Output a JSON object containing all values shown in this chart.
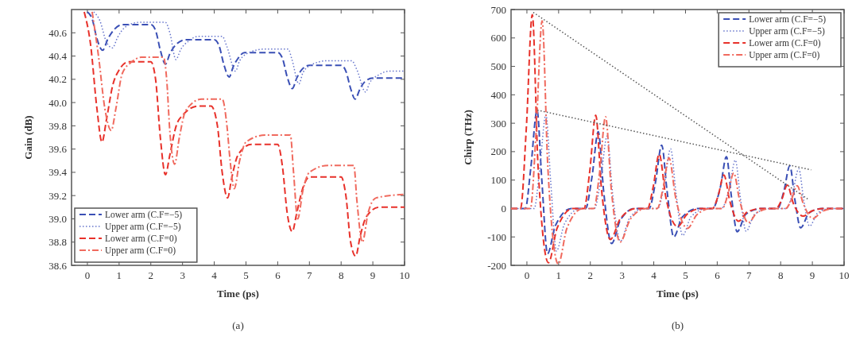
{
  "chart_data": [
    {
      "type": "line",
      "xlabel": "Time (ps)",
      "ylabel": "Gain (dB)",
      "annotations": [
        "(a)"
      ],
      "legend": "bottom left",
      "xlim": [
        -0.5,
        10
      ],
      "xticks": [
        0,
        1,
        2,
        3,
        4,
        5,
        6,
        7,
        8,
        9,
        10
      ],
      "ylim": [
        38.6,
        40.8
      ],
      "yticks": [
        38.6,
        38.8,
        {
          "value": 39,
          "label": "39.0"
        },
        39.2,
        39.4,
        39.6,
        39.8,
        {
          "value": 40,
          "label": "40.0"
        },
        40.2,
        40.4,
        40.6
      ],
      "series": [
        {
          "name": "Lower arm (C.F=−5)",
          "color": "#3a4fb5",
          "line_style": "dashed",
          "x": [
            0,
            0.15,
            0.3,
            0.48,
            0.65,
            0.85,
            1.1,
            2.0,
            2.15,
            2.3,
            2.46,
            2.6,
            2.8,
            3.1,
            4.0,
            4.15,
            4.3,
            4.47,
            4.6,
            4.75,
            4.95,
            6.0,
            6.15,
            6.3,
            6.46,
            6.6,
            6.75,
            7.0,
            8.0,
            8.15,
            8.3,
            8.44,
            8.6,
            8.75,
            9.0,
            10
          ],
          "values": [
            40.78,
            40.72,
            40.55,
            40.45,
            40.55,
            40.63,
            40.67,
            40.67,
            40.62,
            40.45,
            40.33,
            40.42,
            40.5,
            40.54,
            40.54,
            40.49,
            40.33,
            40.22,
            40.31,
            40.38,
            40.43,
            40.43,
            40.38,
            40.22,
            40.12,
            40.21,
            40.28,
            40.32,
            40.32,
            40.27,
            40.12,
            40.03,
            40.12,
            40.18,
            40.21,
            40.21
          ]
        },
        {
          "name": "Upper arm (C.F=−5)",
          "color": "#6675cc",
          "line_style": "dotted",
          "x": [
            0.2,
            0.4,
            0.6,
            0.79,
            0.95,
            1.2,
            1.63,
            2.46,
            2.6,
            2.79,
            2.95,
            3.2,
            3.5,
            4.25,
            4.4,
            4.67,
            4.8,
            5.1,
            5.58,
            6.33,
            6.45,
            6.67,
            6.8,
            7.1,
            7.58,
            8.33,
            8.5,
            8.77,
            8.9,
            9.2,
            9.5,
            10
          ],
          "values": [
            40.78,
            40.7,
            40.52,
            40.47,
            40.56,
            40.65,
            40.69,
            40.69,
            40.6,
            40.37,
            40.46,
            40.53,
            40.57,
            40.57,
            40.48,
            40.27,
            40.36,
            40.43,
            40.46,
            40.46,
            40.37,
            40.16,
            40.26,
            40.33,
            40.36,
            40.36,
            40.28,
            40.09,
            40.17,
            40.24,
            40.27,
            40.27
          ]
        },
        {
          "name": "Lower arm (C.F=0)",
          "color": "#e8312a",
          "line_style": "dashed",
          "x": [
            -0.1,
            0.1,
            0.3,
            0.46,
            0.6,
            0.8,
            1.0,
            1.3,
            2.0,
            2.15,
            2.3,
            2.46,
            2.6,
            2.8,
            3.0,
            3.5,
            3.9,
            4.1,
            4.25,
            4.42,
            4.55,
            4.75,
            5.17,
            6.0,
            6.15,
            6.3,
            6.46,
            6.6,
            6.8,
            7.0,
            8.0,
            8.15,
            8.3,
            8.46,
            8.6,
            8.8,
            9.2,
            10
          ],
          "values": [
            40.78,
            40.5,
            39.95,
            39.66,
            39.85,
            40.15,
            40.28,
            40.35,
            40.35,
            40.2,
            39.7,
            39.38,
            39.55,
            39.8,
            39.89,
            39.97,
            39.97,
            39.8,
            39.4,
            39.18,
            39.35,
            39.55,
            39.64,
            39.64,
            39.45,
            39.05,
            38.89,
            39.05,
            39.27,
            39.36,
            39.36,
            39.2,
            38.8,
            38.68,
            38.85,
            39.02,
            39.1,
            39.1
          ]
        },
        {
          "name": "Upper arm (C.F=0)",
          "color": "#f06a5e",
          "line_style": "dashdot",
          "x": [
            0.15,
            0.35,
            0.55,
            0.75,
            0.9,
            1.1,
            1.4,
            1.7,
            2.4,
            2.5,
            2.6,
            2.75,
            2.9,
            3.1,
            3.6,
            4.25,
            4.4,
            4.5,
            4.63,
            4.8,
            5.0,
            5.6,
            6.4,
            6.5,
            6.63,
            6.8,
            7.0,
            7.6,
            8.4,
            8.5,
            8.67,
            8.85,
            9.1,
            10
          ],
          "values": [
            40.78,
            40.4,
            39.95,
            39.76,
            39.95,
            40.25,
            40.35,
            40.39,
            40.39,
            40.2,
            39.75,
            39.47,
            39.7,
            39.93,
            40.03,
            40.03,
            39.8,
            39.5,
            39.26,
            39.5,
            39.66,
            39.72,
            39.72,
            39.4,
            39.0,
            39.25,
            39.4,
            39.46,
            39.46,
            39.15,
            38.8,
            39.05,
            39.18,
            39.21
          ]
        }
      ]
    },
    {
      "type": "line",
      "xlabel": "Time (ps)",
      "ylabel": "Chirp (THz)",
      "annotations": [
        "(b)"
      ],
      "legend": "top right",
      "xlim": [
        -0.5,
        10
      ],
      "xticks": [
        0,
        1,
        2,
        3,
        4,
        5,
        6,
        7,
        8,
        9,
        10
      ],
      "ylim": [
        -200,
        700
      ],
      "yticks": [
        -200,
        -100,
        0,
        100,
        200,
        300,
        400,
        500,
        600,
        700
      ],
      "series": [
        {
          "name": "Lower arm (C.F=−5)",
          "color": "#3a4fb5",
          "line_style": "dashed",
          "x": [
            -0.5,
            -0.05,
            0.12,
            0.32,
            0.47,
            0.65,
            0.9,
            1.4,
            1.85,
            2.05,
            2.25,
            2.42,
            2.67,
            2.95,
            3.4,
            3.85,
            4.05,
            4.25,
            4.42,
            4.63,
            4.9,
            5.4,
            5.85,
            6.1,
            6.29,
            6.45,
            6.63,
            6.9,
            7.4,
            7.9,
            8.1,
            8.29,
            8.45,
            8.63,
            8.9,
            9.3,
            10
          ],
          "values": [
            0,
            0,
            140,
            345,
            100,
            -159,
            -60,
            0,
            0,
            110,
            270,
            60,
            -123,
            -40,
            0,
            0,
            90,
            223,
            60,
            -100,
            -30,
            0,
            0,
            75,
            182,
            40,
            -82,
            -20,
            0,
            0,
            60,
            150,
            30,
            -68,
            -15,
            0,
            0
          ]
        },
        {
          "name": "Upper arm (C.F=−5)",
          "color": "#6675cc",
          "line_style": "dotted",
          "x": [
            -0.5,
            0.23,
            0.4,
            0.6,
            0.75,
            0.93,
            1.18,
            1.68,
            2.13,
            2.33,
            2.53,
            2.7,
            2.95,
            3.23,
            3.68,
            4.13,
            4.33,
            4.53,
            4.7,
            4.91,
            5.18,
            5.68,
            6.13,
            6.38,
            6.57,
            6.73,
            6.91,
            7.18,
            7.68,
            8.18,
            8.38,
            8.57,
            8.73,
            8.91,
            9.18,
            9.58,
            10
          ],
          "values": [
            0,
            0,
            135,
            330,
            95,
            -150,
            -55,
            0,
            0,
            105,
            255,
            55,
            -115,
            -35,
            0,
            0,
            85,
            210,
            55,
            -95,
            -28,
            0,
            0,
            70,
            170,
            38,
            -80,
            -20,
            0,
            0,
            55,
            140,
            28,
            -62,
            -14,
            0,
            0
          ]
        },
        {
          "name": "Lower arm (C.F=0)",
          "color": "#e8312a",
          "line_style": "dashed",
          "x": [
            -0.5,
            -0.2,
            -0.02,
            0.17,
            0.35,
            0.68,
            0.95,
            1.45,
            1.8,
            1.98,
            2.17,
            2.35,
            2.63,
            2.95,
            3.45,
            3.8,
            3.98,
            4.17,
            4.38,
            4.75,
            5.05,
            5.5,
            5.85,
            6.03,
            6.21,
            6.4,
            6.67,
            6.95,
            7.4,
            7.85,
            8.03,
            8.21,
            8.4,
            8.71,
            9.0,
            9.4,
            10
          ],
          "values": [
            0,
            0,
            280,
            682,
            150,
            -191,
            -70,
            0,
            0,
            130,
            328,
            70,
            -109,
            -35,
            0,
            0,
            75,
            191,
            40,
            -64,
            -20,
            0,
            0,
            45,
            118,
            25,
            -45,
            -12,
            0,
            0,
            30,
            82,
            18,
            -27,
            -8,
            0,
            0
          ]
        },
        {
          "name": "Upper arm (C.F=0)",
          "color": "#f06a5e",
          "line_style": "dashdot",
          "x": [
            -0.5,
            0.11,
            0.29,
            0.48,
            0.66,
            0.99,
            1.26,
            1.76,
            2.11,
            2.29,
            2.48,
            2.66,
            2.94,
            3.26,
            3.76,
            4.11,
            4.29,
            4.48,
            4.69,
            5.06,
            5.36,
            5.81,
            6.16,
            6.34,
            6.52,
            6.71,
            6.98,
            7.26,
            7.71,
            8.16,
            8.34,
            8.52,
            8.71,
            9.02,
            9.31,
            9.71,
            10
          ],
          "values": [
            0,
            0,
            270,
            660,
            145,
            -195,
            -70,
            0,
            0,
            125,
            323,
            68,
            -118,
            -38,
            0,
            0,
            70,
            178,
            38,
            -70,
            -22,
            0,
            0,
            50,
            125,
            27,
            -50,
            -14,
            0,
            0,
            32,
            80,
            18,
            -35,
            -10,
            0,
            0
          ]
        },
        {
          "color": "#555555",
          "line_style": "dotted",
          "x": [
            0.2,
            8.9
          ],
          "values": [
            690,
            30
          ]
        },
        {
          "color": "#555555",
          "line_style": "dotted",
          "x": [
            0.33,
            8.96
          ],
          "values": [
            346,
            136
          ]
        }
      ]
    }
  ]
}
